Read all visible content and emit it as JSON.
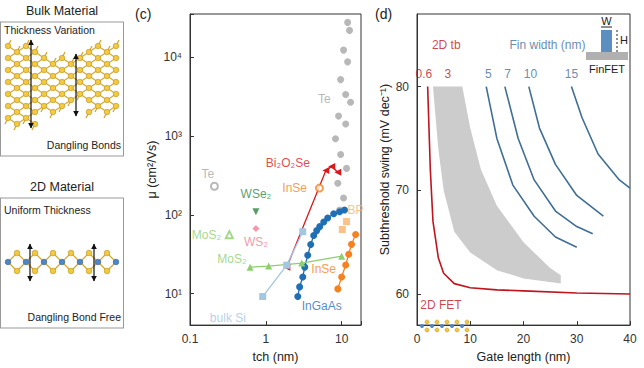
{
  "diagram": {
    "panels": [
      {
        "title": "Bulk Material",
        "top_label": "Thickness Variation",
        "bottom_label": "Dangling Bonds"
      },
      {
        "title": "2D Material",
        "top_label": "Uniform Thickness",
        "bottom_label": "Dangling Bond Free"
      }
    ]
  },
  "chart_data": [
    {
      "title": "(c)",
      "type": "scatter",
      "log": true,
      "grid": false,
      "xlabel": "tch (nm)",
      "ylabel": "μ (cm²/Vs)",
      "xlim": [
        0.1,
        18
      ],
      "ylim": [
        4,
        35000
      ],
      "xticks": [
        0.1,
        1,
        10
      ],
      "yticks": [
        {
          "value": 10,
          "label": "10¹"
        },
        {
          "value": 100,
          "label": "10²"
        },
        {
          "value": 1000,
          "label": "10³"
        },
        {
          "value": 10000,
          "label": "10⁴"
        }
      ],
      "series": [
        {
          "name": "Te",
          "type": "scatter",
          "color": "#a6a6a6",
          "marker": "circle",
          "x": [
            12.0,
            12.7,
            10.6,
            12.0,
            9.7,
            11.3,
            13.1,
            9.1,
            11.3,
            8.3,
            9.7,
            11.6,
            8.9,
            10.6,
            9.4
          ],
          "values": [
            27400,
            21700,
            12200,
            8660,
            5160,
            3350,
            2660,
            1780,
            1410,
            917,
            579,
            387,
            251,
            163,
            115
          ]
        },
        {
          "name": "Te",
          "type": "scatter",
          "color": "#a6a6a6",
          "marker": "circle-open",
          "x": [
            0.21
          ],
          "values": [
            230
          ]
        },
        {
          "name": "Bi₂O₂Se",
          "type": "line",
          "color": "#d7191c",
          "marker": "triangle-left",
          "x": [
            1.89,
            6.2,
            7.4,
            8.9
          ],
          "values": [
            21.7,
            365,
            410,
            345
          ]
        },
        {
          "name": "InSe",
          "type": "scatter",
          "color": "#f58220",
          "marker": "circle-open",
          "x": [
            5.1
          ],
          "values": [
            218
          ]
        },
        {
          "name": "InSe",
          "type": "line",
          "color": "#f58220",
          "marker": "circle",
          "x": [
            8.9,
            10.0,
            11.3,
            12.4,
            13.5,
            15.3
          ],
          "values": [
            11.5,
            16.3,
            23.1,
            31.6,
            42.2,
            56.2
          ]
        },
        {
          "name": "BP",
          "type": "scatter",
          "color": "#f9b26c",
          "marker": "square",
          "x": [
            10.2,
            11.6
          ],
          "values": [
            65,
            82
          ]
        },
        {
          "name": "InGaAs",
          "type": "line",
          "color": "#1f6fb4",
          "marker": "circle",
          "x": [
            2.64,
            2.79,
            3.07,
            3.26,
            3.57,
            3.91,
            4.28,
            4.69,
            5.14,
            5.8,
            6.54,
            7.85,
            9.4,
            10.9
          ],
          "values": [
            9.2,
            12.2,
            16.3,
            21.7,
            30.7,
            42,
            54.6,
            63,
            70.8,
            81,
            91,
            103,
            109,
            115
          ]
        },
        {
          "name": "bulk Si",
          "type": "line",
          "color": "#a3c6e3",
          "marker": "square",
          "x": [
            0.91,
            1.89,
            3.07
          ],
          "values": [
            9.2,
            23,
            61
          ]
        },
        {
          "name": "MoS₂",
          "type": "line",
          "color": "#8dcf6f",
          "marker": "triangle",
          "x": [
            0.62,
            1.09,
            2.98,
            10
          ],
          "values": [
            21.7,
            22.4,
            24.4,
            29.9
          ]
        },
        {
          "name": "MoS₂",
          "type": "scatter",
          "color": "#8dcf6f",
          "marker": "triangle-open",
          "x": [
            0.33
          ],
          "values": [
            56
          ]
        },
        {
          "name": "WSe₂",
          "type": "scatter",
          "color": "#2e8540",
          "marker": "triangle-down",
          "x": [
            0.74
          ],
          "values": [
            109
          ]
        },
        {
          "name": "WS₂",
          "type": "scatter",
          "color": "#f08096",
          "marker": "diamond",
          "x": [
            0.74
          ],
          "values": [
            67
          ]
        }
      ],
      "annotations": [
        {
          "text": "Te",
          "x": 5.9,
          "y": 2900,
          "color": "#a6a6a6"
        },
        {
          "text": "Te",
          "x": 0.172,
          "y": 325,
          "color": "#a6a6a6"
        },
        {
          "text": "Bi₂O₂Se",
          "x": 1.95,
          "y": 447,
          "color": "#d7191c"
        },
        {
          "text": "InSe",
          "x": 2.4,
          "y": 218,
          "color": "#f58220"
        },
        {
          "text": "InSe",
          "x": 5.79,
          "y": 20.5,
          "color": "#f58220"
        },
        {
          "text": "BP",
          "x": 15.2,
          "y": 115,
          "color": "#f9b26c"
        },
        {
          "text": "InGaAs",
          "x": 5.45,
          "y": 6.9,
          "color": "#1f6fb4"
        },
        {
          "text": "bulk Si",
          "x": 0.316,
          "y": 4.9,
          "color": "#a3c6e3"
        },
        {
          "text": "MoS₂",
          "x": 0.357,
          "y": 27.4,
          "color": "#8dcf6f"
        },
        {
          "text": "MoS₂",
          "x": 0.165,
          "y": 56,
          "color": "#8dcf6f"
        },
        {
          "text": "WSe₂",
          "x": 0.74,
          "y": 183,
          "color": "#2e8540"
        },
        {
          "text": "WS₂",
          "x": 0.74,
          "y": 44.7,
          "color": "#f08096"
        }
      ]
    },
    {
      "title": "(d)",
      "type": "line",
      "grid": false,
      "xlabel": "Gate length (nm)",
      "ylabel": "Subthreshold swing (mV dec⁻¹)",
      "xlim": [
        0,
        40
      ],
      "ylim": [
        57,
        87
      ],
      "xticks": [
        0,
        10,
        20,
        30,
        40
      ],
      "yticks": [
        60,
        70,
        80
      ],
      "series": [
        {
          "name": "2D tb",
          "type": "band",
          "color": "#cccccc",
          "upper": {
            "x": [
              8.5,
              10,
              12,
              15,
              20,
              25,
              27
            ],
            "values": [
              80,
              76,
              72,
              68.5,
              65,
              62.5,
              61.8
            ]
          },
          "lower": {
            "x": [
              3,
              4,
              5,
              7,
              10,
              15,
              20,
              27
            ],
            "values": [
              80,
              74,
              70,
              66,
              64,
              62.3,
              61.5,
              61
            ]
          }
        },
        {
          "name": "2D FET",
          "type": "line",
          "color": "#c0141e",
          "x": [
            2,
            2.5,
            3,
            4,
            5,
            7,
            10,
            15,
            20,
            30,
            40
          ],
          "values": [
            80,
            72,
            67,
            63.5,
            62,
            61,
            60.6,
            60.4,
            60.3,
            60.1,
            60
          ]
        },
        {
          "name": "5",
          "type": "line",
          "color": "#3f6e96",
          "x": [
            13,
            15,
            18,
            22,
            26,
            30
          ],
          "values": [
            80,
            75,
            70.5,
            67.5,
            65.5,
            64.5
          ]
        },
        {
          "name": "7",
          "type": "line",
          "color": "#3f6e96",
          "x": [
            16.5,
            19,
            22,
            26,
            30,
            33
          ],
          "values": [
            80,
            75,
            71,
            68,
            66.5,
            65.8
          ]
        },
        {
          "name": "10",
          "type": "line",
          "color": "#3f6e96",
          "x": [
            21,
            23,
            26,
            30,
            35
          ],
          "values": [
            80,
            76,
            72.5,
            69.5,
            67.5
          ]
        },
        {
          "name": "15",
          "type": "line",
          "color": "#3f6e96",
          "x": [
            29,
            31,
            34,
            38,
            40
          ],
          "values": [
            80,
            77,
            73.5,
            71,
            70.2
          ]
        }
      ],
      "annotations": [
        {
          "text": "2D tb",
          "x": 5.5,
          "y": 84,
          "color": "#c0141e"
        },
        {
          "text": "0.6",
          "x": 1.3,
          "y": 81.2,
          "color": "#c0141e"
        },
        {
          "text": "3",
          "x": 5.8,
          "y": 81.2,
          "color": "#c0141e"
        },
        {
          "text": "Fin width (nm)",
          "x": 24.5,
          "y": 84,
          "color": "#3f6e96"
        },
        {
          "text": "5",
          "x": 13.4,
          "y": 81.2,
          "color": "#3f6e96"
        },
        {
          "text": "7",
          "x": 17,
          "y": 81.2,
          "color": "#3f6e96"
        },
        {
          "text": "10",
          "x": 21.3,
          "y": 81.2,
          "color": "#3f6e96"
        },
        {
          "text": "15",
          "x": 29,
          "y": 81.2,
          "color": "#3f6e96"
        },
        {
          "text": "2D FET",
          "x": 4.5,
          "y": 58.9,
          "color": "#c0141e"
        }
      ],
      "inset": {
        "label": "FinFET",
        "width_label": "W",
        "height_label": "H"
      }
    }
  ]
}
